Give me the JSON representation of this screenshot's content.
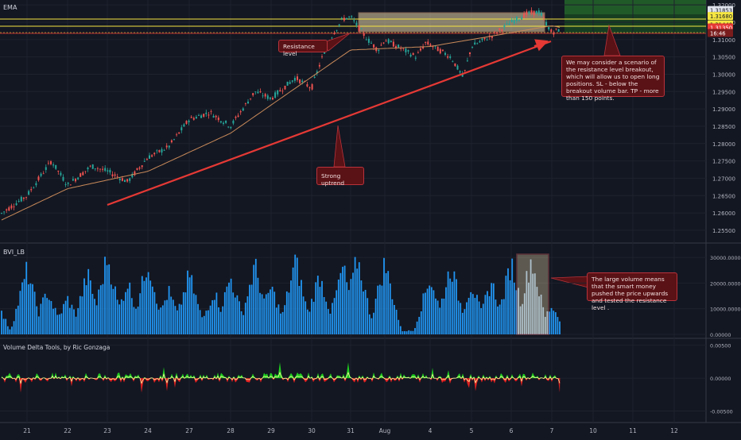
{
  "panels": {
    "price_label": "EMA",
    "volume_label": "BVI_LB",
    "delta_label": "Volume Delta Tools, by Ric Gonzaga"
  },
  "price_axis": {
    "ticks": [
      "1.32000",
      "1.31500",
      "1.31000",
      "1.30500",
      "1.30000",
      "1.29500",
      "1.29000",
      "1.28500",
      "1.28000",
      "1.27500",
      "1.27000",
      "1.26500",
      "1.26000",
      "1.25500"
    ],
    "badges": [
      {
        "text": "1.31853",
        "bg": "#e0e3eb",
        "fg": "#131722",
        "y": 1.31853
      },
      {
        "text": "1.31680",
        "bg": "#f5e642",
        "fg": "#131722",
        "y": 1.3168
      },
      {
        "text": "1.31440",
        "bg": "#f5e642",
        "fg": "#131722",
        "y": 1.3144
      },
      {
        "text": "1.31350",
        "bg": "#e53935",
        "fg": "#ffffff",
        "y": 1.3135
      },
      {
        "text": "16:46",
        "bg": "#7a1c1c",
        "fg": "#ffffff",
        "y": 1.3119
      }
    ]
  },
  "volume_axis": {
    "ticks": [
      "30000.00000",
      "20000.00000",
      "10000.00000",
      "0.00000"
    ]
  },
  "delta_axis": {
    "ticks": [
      "0.00500",
      "0.00000",
      "-0.00500"
    ]
  },
  "time_axis": {
    "labels": [
      "21",
      "22",
      "23",
      "24",
      "27",
      "28",
      "29",
      "30",
      "31",
      "Aug",
      "4",
      "5",
      "6",
      "7",
      "10",
      "11",
      "12"
    ]
  },
  "callouts": {
    "resistance": "Resistance level",
    "uptrend": "Strong uptrend",
    "scenario": "We may consider a scenario of the resistance level breakout, which will allow us to open long positions. SL - below the breakout volume bar. TP - more than 150 points.",
    "volume": "The large volume means that the smart money pushed the price upwards and tested the resistance level ."
  },
  "colors": {
    "background": "#131722",
    "bull": "#26a69a",
    "bear": "#ef5350",
    "ema": "#c98a5a",
    "volume_bar": "#2196f3",
    "trendline": "#e53935",
    "resistance_line": "#f5e642",
    "delta_up": "#1fce1f",
    "delta_down": "#e02020",
    "delta_line": "#fff59d"
  },
  "chart_data": {
    "type": "candlestick",
    "price_ylim": [
      1.252,
      1.3205
    ],
    "volume_ylim": [
      0,
      35000
    ],
    "delta_ylim": [
      -0.0065,
      0.0058
    ],
    "resistance_levels": [
      1.3168,
      1.3144
    ],
    "trendline": [
      {
        "date": "22",
        "price": 1.2625
      },
      {
        "date": "7",
        "price": 1.3095
      }
    ],
    "price_path": [
      [
        "20",
        1.257
      ],
      [
        "21",
        1.265
      ],
      [
        "21.6",
        1.275
      ],
      [
        "22",
        1.268
      ],
      [
        "22.6",
        1.2735
      ],
      [
        "23",
        1.272
      ],
      [
        "23.5",
        1.269
      ],
      [
        "24",
        1.276
      ],
      [
        "24.5",
        1.279
      ],
      [
        "27",
        1.287
      ],
      [
        "27.5",
        1.289
      ],
      [
        "28",
        1.285
      ],
      [
        "28.6",
        1.295
      ],
      [
        "29",
        1.293
      ],
      [
        "29.6",
        1.299
      ],
      [
        "30",
        1.296
      ],
      [
        "30.4",
        1.309
      ],
      [
        "30.8",
        1.316
      ],
      [
        "31",
        1.3165
      ],
      [
        "31.5",
        1.31
      ],
      [
        "31.8",
        1.307
      ],
      [
        "Aug",
        1.31
      ],
      [
        "3.4",
        1.305
      ],
      [
        "3.8",
        1.309
      ],
      [
        "4",
        1.3085
      ],
      [
        "4.5",
        1.305
      ],
      [
        "4.8",
        1.299
      ],
      [
        "5",
        1.308
      ],
      [
        "5.5",
        1.311
      ],
      [
        "6",
        1.315
      ],
      [
        "6.4",
        1.3175
      ],
      [
        "6.7",
        1.318
      ],
      [
        "7",
        1.312
      ],
      [
        "7.2",
        1.313
      ]
    ],
    "ema_path": [
      [
        "20",
        1.256
      ],
      [
        "22",
        1.267
      ],
      [
        "24",
        1.272
      ],
      [
        "28",
        1.283
      ],
      [
        "29.6",
        1.296
      ],
      [
        "31",
        1.307
      ],
      [
        "4",
        1.308
      ],
      [
        "5.5",
        1.311
      ],
      [
        "7",
        1.314
      ],
      [
        "7.2",
        1.3135
      ]
    ],
    "volume_peaks": [
      [
        "20.2",
        14000
      ],
      [
        "21",
        27000
      ],
      [
        "21.5",
        18000
      ],
      [
        "22",
        15000
      ],
      [
        "22.5",
        25000
      ],
      [
        "23",
        33000
      ],
      [
        "23.5",
        22000
      ],
      [
        "24",
        31000
      ],
      [
        "24.5",
        18000
      ],
      [
        "27",
        25000
      ],
      [
        "27.6",
        18000
      ],
      [
        "28",
        24000
      ],
      [
        "28.6",
        29000
      ],
      [
        "29",
        20000
      ],
      [
        "29.6",
        31000
      ],
      [
        "30.2",
        25000
      ],
      [
        "30.8",
        28000
      ],
      [
        "31.2",
        32000
      ],
      [
        "Aug",
        30000
      ],
      [
        "4",
        24000
      ],
      [
        "4.5",
        29000
      ],
      [
        "5",
        21000
      ],
      [
        "5.5",
        22000
      ],
      [
        "6",
        30000
      ],
      [
        "6.5",
        32000
      ],
      [
        "7",
        12000
      ]
    ]
  }
}
